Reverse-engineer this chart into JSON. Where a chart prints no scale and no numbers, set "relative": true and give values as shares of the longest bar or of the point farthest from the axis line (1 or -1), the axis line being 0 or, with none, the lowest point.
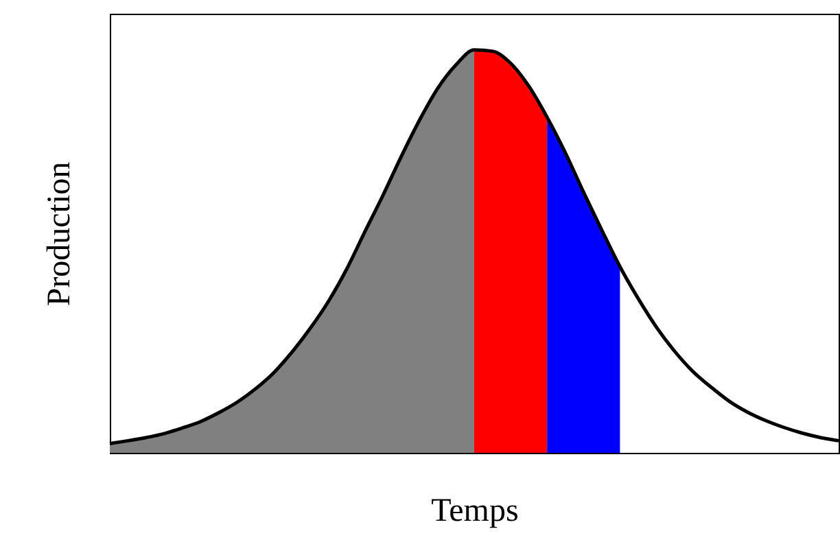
{
  "chart_data": {
    "type": "area",
    "relative": true,
    "xlabel": "Temps",
    "ylabel": "Production",
    "grid": false,
    "tick_labels": false,
    "categories": [
      null,
      null,
      null,
      null,
      null,
      null,
      null,
      null,
      null,
      null,
      null,
      null,
      null,
      null,
      null,
      null,
      null,
      null,
      null,
      null,
      null,
      null,
      null,
      null,
      null,
      null,
      null,
      null,
      null,
      null,
      null,
      null,
      null,
      null,
      null,
      null,
      null,
      null,
      null,
      null,
      null
    ],
    "series": [
      {
        "color": "#808080",
        "values": [
          0.023,
          0.03,
          0.038,
          0.048,
          0.062,
          0.078,
          0.1,
          0.126,
          0.159,
          0.199,
          0.25,
          0.309,
          0.376,
          0.456,
          0.549,
          0.64,
          0.736,
          0.826,
          0.905,
          0.963,
          1.0,
          null,
          null,
          null,
          null,
          null,
          null,
          null,
          null,
          null,
          null,
          null,
          null,
          null,
          null,
          null,
          null,
          null,
          null,
          null,
          null
        ]
      },
      {
        "color": "#ff0000",
        "values": [
          null,
          null,
          null,
          null,
          null,
          null,
          null,
          null,
          null,
          null,
          null,
          null,
          null,
          null,
          null,
          null,
          null,
          null,
          null,
          null,
          1.0,
          0.997,
          0.967,
          0.91,
          0.833,
          null,
          null,
          null,
          null,
          null,
          null,
          null,
          null,
          null,
          null,
          null,
          null,
          null,
          null,
          null,
          null
        ]
      },
      {
        "color": "#0000ff",
        "values": [
          null,
          null,
          null,
          null,
          null,
          null,
          null,
          null,
          null,
          null,
          null,
          null,
          null,
          null,
          null,
          null,
          null,
          null,
          null,
          null,
          null,
          null,
          null,
          null,
          0.833,
          0.745,
          0.647,
          0.553,
          0.462,
          null,
          null,
          null,
          null,
          null,
          null,
          null,
          null,
          null,
          null,
          null,
          null
        ]
      },
      {
        "type": "line",
        "color": "#000000",
        "values": [
          0.023,
          0.03,
          0.038,
          0.048,
          0.062,
          0.078,
          0.1,
          0.126,
          0.159,
          0.199,
          0.25,
          0.309,
          0.376,
          0.456,
          0.549,
          0.64,
          0.736,
          0.826,
          0.905,
          0.963,
          1.0,
          0.997,
          0.967,
          0.91,
          0.833,
          0.745,
          0.647,
          0.553,
          0.462,
          0.383,
          0.312,
          0.252,
          0.202,
          0.163,
          0.128,
          0.101,
          0.08,
          0.063,
          0.049,
          0.038,
          0.03
        ]
      }
    ]
  }
}
